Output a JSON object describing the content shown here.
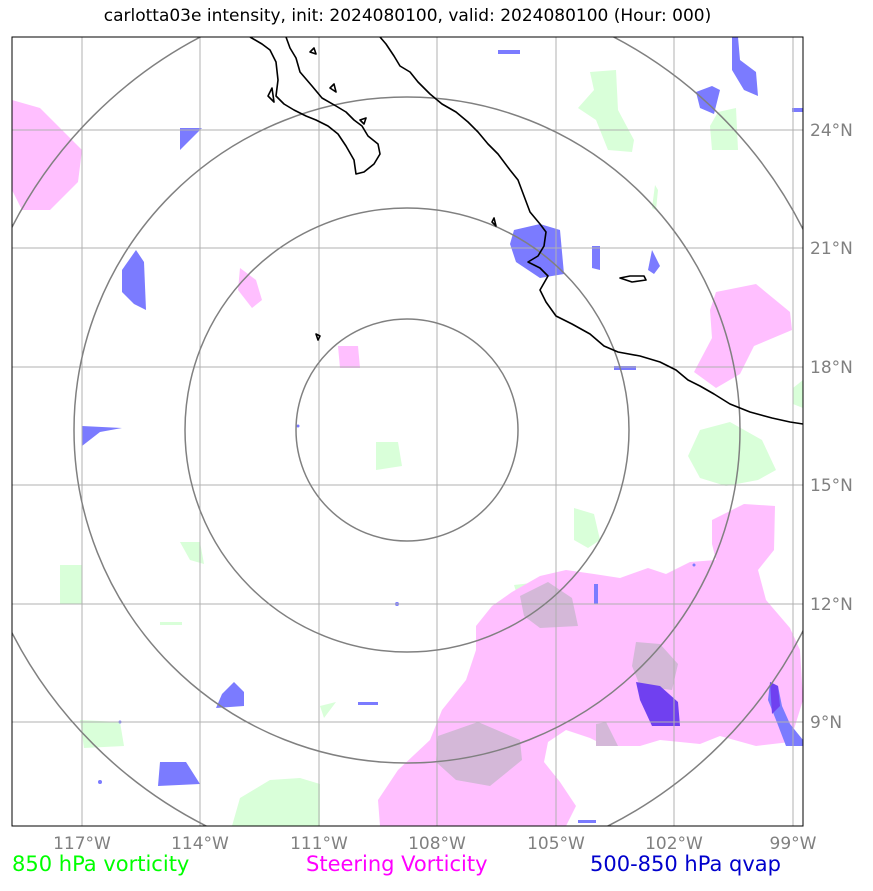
{
  "title": "carlotta03e intensity, init: 2024080100, valid: 2024080100 (Hour: 000)",
  "map": {
    "lat_ticks": [
      "24°N",
      "21°N",
      "18°N",
      "15°N",
      "12°N",
      "9°N"
    ],
    "lon_ticks": [
      "117°W",
      "114°W",
      "111°W",
      "108°W",
      "105°W",
      "102°W",
      "99°W"
    ],
    "lat_range": [
      6.5,
      26.5
    ],
    "lon_range": [
      -118.5,
      -98.5
    ],
    "grid": true,
    "range_rings_count": 4,
    "colors": {
      "vorticity_850": "#ccffcc",
      "steering_vorticity": "#ffb3ff",
      "qvap_500_850": "#7070ff",
      "gridline": "#b0b0b0",
      "ring": "#808080",
      "coastline": "#000000"
    }
  },
  "legend": {
    "vorticity_label": "850 hPa vorticity",
    "vorticity_color": "#00ff00",
    "steering_label": "Steering Vorticity",
    "steering_color": "#ff00ff",
    "qvap_label": "500-850 hPa qvap",
    "qvap_color": "#0000cc"
  }
}
